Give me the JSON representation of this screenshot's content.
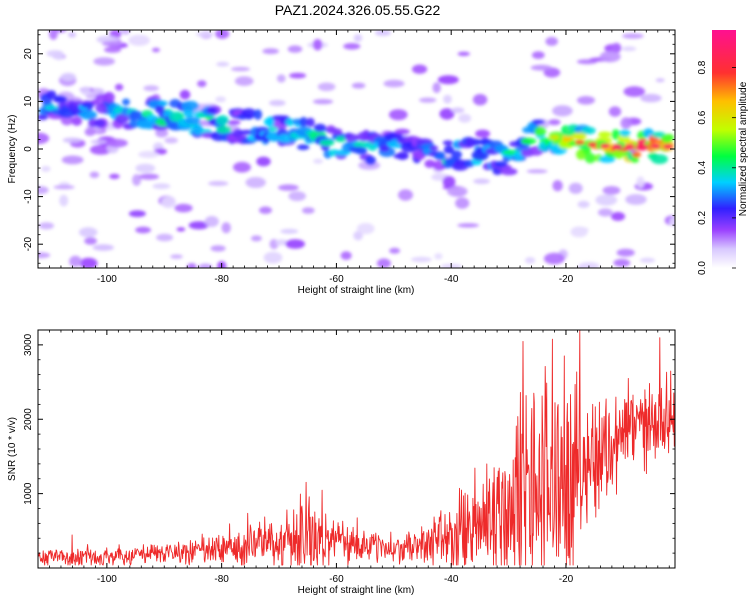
{
  "figure_title": "PAZ1.2024.326.05.55.G22",
  "colorbar": {
    "label": "Normalized spectral amplitude",
    "ticks": [
      "0.0",
      "0.2",
      "0.4",
      "0.6",
      "0.8"
    ]
  },
  "chart_data": [
    {
      "type": "heatmap",
      "title": "",
      "xlabel": "Height of straight line (km)",
      "ylabel": "Frequency (Hz)",
      "xlim": [
        -112,
        -1
      ],
      "ylim": [
        -25,
        25
      ],
      "xticks": [
        -100,
        -80,
        -60,
        -40,
        -20
      ],
      "yticks": [
        -20,
        -10,
        0,
        10,
        20
      ],
      "colorscale": [
        "#ffffff",
        "#e0ccff",
        "#9a40ff",
        "#7a00ff",
        "#2020ff",
        "#00d0ff",
        "#00ff60",
        "#c0ff00",
        "#ffd000",
        "#ff3030",
        "#ff1090"
      ],
      "clim": [
        0.0,
        0.95
      ],
      "ridge": [
        {
          "x": -110,
          "f": 9,
          "a": 0.35
        },
        {
          "x": -100,
          "f": 8,
          "a": 0.32
        },
        {
          "x": -90,
          "f": 7,
          "a": 0.45
        },
        {
          "x": -85,
          "f": 6,
          "a": 0.5
        },
        {
          "x": -78,
          "f": 5,
          "a": 0.4
        },
        {
          "x": -70,
          "f": 4,
          "a": 0.45
        },
        {
          "x": -65,
          "f": 3,
          "a": 0.4
        },
        {
          "x": -60,
          "f": 1,
          "a": 0.45
        },
        {
          "x": -55,
          "f": 0,
          "a": 0.4
        },
        {
          "x": -50,
          "f": 1,
          "a": 0.35
        },
        {
          "x": -45,
          "f": 0,
          "a": 0.3
        },
        {
          "x": -40,
          "f": -1,
          "a": 0.45
        },
        {
          "x": -35,
          "f": -1,
          "a": 0.4
        },
        {
          "x": -30,
          "f": -2,
          "a": 0.4
        },
        {
          "x": -25,
          "f": 3,
          "a": 0.5
        },
        {
          "x": -20,
          "f": 2,
          "a": 0.62
        },
        {
          "x": -16,
          "f": 1,
          "a": 0.8
        },
        {
          "x": -12,
          "f": 0.5,
          "a": 0.88
        },
        {
          "x": -7,
          "f": 0.5,
          "a": 0.85
        },
        {
          "x": -3,
          "f": 0.5,
          "a": 0.85
        }
      ]
    },
    {
      "type": "line",
      "title": "",
      "xlabel": "Height of straight line (km)",
      "ylabel": "SNR (10 * v/v)",
      "xlim": [
        -112,
        -1
      ],
      "ylim": [
        0,
        3200
      ],
      "xticks": [
        -100,
        -80,
        -60,
        -40,
        -20
      ],
      "yticks": [
        1000,
        2000,
        3000
      ],
      "color": "#ee2a2a",
      "envelope": {
        "x": [
          -112,
          -100,
          -90,
          -80,
          -70,
          -66,
          -60,
          -55,
          -50,
          -45,
          -40,
          -35,
          -30,
          -27,
          -25,
          -22,
          -20,
          -15,
          -10,
          -5,
          -1
        ],
        "base": [
          150,
          150,
          200,
          250,
          350,
          400,
          350,
          300,
          250,
          300,
          400,
          600,
          800,
          900,
          1000,
          1100,
          1200,
          1500,
          1800,
          2000,
          2100
        ],
        "amp": [
          150,
          150,
          200,
          300,
          400,
          700,
          450,
          300,
          200,
          300,
          600,
          1000,
          1600,
          2000,
          2200,
          2000,
          1700,
          1100,
          800,
          700,
          600
        ]
      }
    }
  ]
}
